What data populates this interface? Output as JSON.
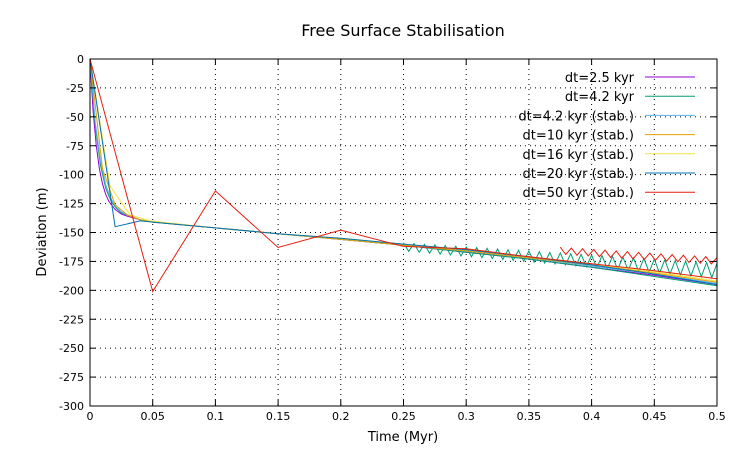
{
  "chart_data": {
    "type": "line",
    "title": "Free Surface Stabilisation",
    "xlabel": "Time (Myr)",
    "ylabel": "Deviation (m)",
    "xlim": [
      0,
      0.5
    ],
    "ylim": [
      -300,
      0
    ],
    "x_ticks": [
      "0",
      "0.05",
      "0.1",
      "0.15",
      "0.2",
      "0.25",
      "0.3",
      "0.35",
      "0.4",
      "0.45",
      "0.5"
    ],
    "y_ticks": [
      "0",
      "-25",
      "-50",
      "-75",
      "-100",
      "-125",
      "-150",
      "-175",
      "-200",
      "-225",
      "-250",
      "-275",
      "-300"
    ],
    "grid": true,
    "legend_position": "top-right",
    "series": [
      {
        "name": "dt=2.5 kyr",
        "color": "#9400d3",
        "x": [
          0,
          0.0025,
          0.005,
          0.0075,
          0.01,
          0.0125,
          0.015,
          0.02,
          0.025,
          0.03,
          0.04,
          0.05,
          0.1,
          0.15,
          0.2,
          0.25,
          0.3,
          0.35,
          0.4,
          0.45,
          0.5
        ],
        "y": [
          0,
          -45,
          -75,
          -95,
          -108,
          -117,
          -123,
          -130,
          -134,
          -136,
          -139,
          -141,
          -146,
          -151,
          -156,
          -161,
          -167,
          -173,
          -180,
          -187,
          -195
        ]
      },
      {
        "name": "dt=4.2 kyr",
        "color": "#009e73",
        "x": [
          0,
          0.0042,
          0.0084,
          0.0126,
          0.0168,
          0.021,
          0.025,
          0.03,
          0.04,
          0.05,
          0.1,
          0.15,
          0.2,
          0.25,
          0.3,
          0.35,
          0.4,
          0.45,
          0.5
        ],
        "y": [
          0,
          -58,
          -92,
          -112,
          -123,
          -129,
          -133,
          -135,
          -139,
          -141,
          -146,
          -151,
          -156,
          -161,
          -167,
          -173,
          -180,
          -188,
          -196
        ]
      },
      {
        "name": "dt=4.2 kyr (stab.)",
        "color": "#56b4e9",
        "x": [
          0,
          0.0042,
          0.0084,
          0.0126,
          0.0168,
          0.021,
          0.025,
          0.03,
          0.04,
          0.05,
          0.1,
          0.15,
          0.2,
          0.25,
          0.3,
          0.35,
          0.4,
          0.45,
          0.5
        ],
        "y": [
          0,
          -55,
          -88,
          -109,
          -121,
          -128,
          -132,
          -135,
          -139,
          -141,
          -146,
          -151,
          -156,
          -161,
          -166,
          -172,
          -179,
          -186,
          -194
        ]
      },
      {
        "name": "dt=10 kyr (stab.)",
        "color": "#e69f00",
        "x": [
          0,
          0.01,
          0.02,
          0.03,
          0.04,
          0.05,
          0.1,
          0.15,
          0.2,
          0.25,
          0.3,
          0.35,
          0.4,
          0.45,
          0.5
        ],
        "y": [
          0,
          -95,
          -126,
          -135,
          -139,
          -141,
          -146,
          -151,
          -156,
          -161,
          -166,
          -172,
          -178,
          -185,
          -193
        ]
      },
      {
        "name": "dt=16 kyr (stab.)",
        "color": "#f0e442",
        "x": [
          0,
          0.016,
          0.032,
          0.048,
          0.1,
          0.15,
          0.2,
          0.25,
          0.3,
          0.35,
          0.4,
          0.45,
          0.5
        ],
        "y": [
          0,
          -110,
          -135,
          -140,
          -146,
          -151,
          -155,
          -160,
          -165,
          -171,
          -177,
          -184,
          -192
        ]
      },
      {
        "name": "dt=20 kyr (stab.)",
        "color": "#0072b2",
        "x": [
          0,
          0.02,
          0.04,
          0.06,
          0.1,
          0.15,
          0.2,
          0.25,
          0.3,
          0.35,
          0.4,
          0.45,
          0.5
        ],
        "y": [
          0,
          -145,
          -140,
          -142,
          -146,
          -151,
          -155,
          -160,
          -165,
          -171,
          -178,
          -186,
          -195
        ]
      },
      {
        "name": "dt=50 kyr (stab.)",
        "color": "#e51e10",
        "x": [
          0,
          0.05,
          0.1,
          0.15,
          0.2,
          0.25,
          0.3,
          0.35,
          0.4,
          0.45,
          0.5
        ],
        "y": [
          0,
          -201,
          -114,
          -163,
          -148,
          -162,
          -164,
          -171,
          -177,
          -183,
          -190
        ]
      }
    ]
  }
}
